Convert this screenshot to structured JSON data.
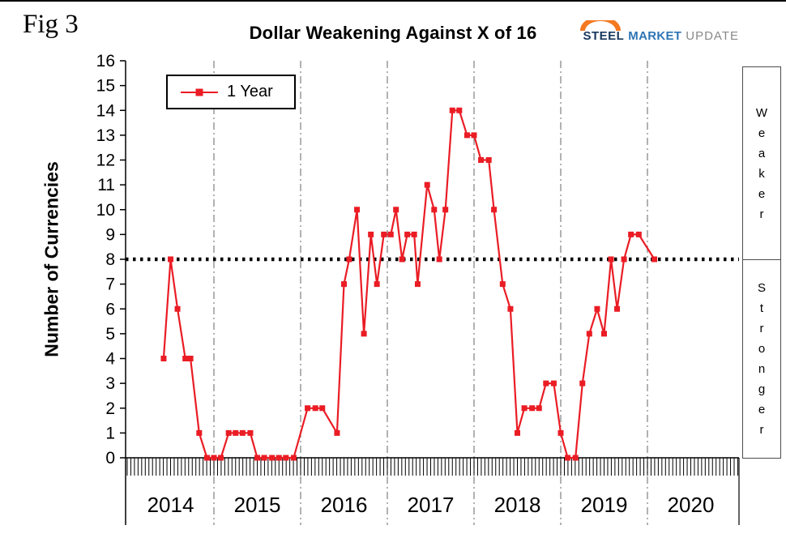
{
  "fig_label": "Fig 3",
  "title": "Dollar Weakening Against X of 16",
  "logo": {
    "steel": "STEEL",
    "market": "MARKET",
    "update": "UPDATE"
  },
  "legend": {
    "label": "1 Year"
  },
  "side": {
    "weaker": "Weaker",
    "stronger": "Stronger"
  },
  "colors": {
    "series": "#ea1c24",
    "threshold": "#000000",
    "gridline": "#7f7f7f",
    "axis": "#000000",
    "logo_orange": "#f47920",
    "logo_navy": "#17365d",
    "logo_blue": "#2e74b5",
    "logo_gray": "#898989"
  },
  "chart_data": {
    "type": "line",
    "title": "Dollar Weakening Against X of 16",
    "series_name": "1 Year",
    "xlabel": "",
    "ylabel": "Number of Currencies",
    "ylim": [
      0,
      16
    ],
    "yticks": [
      0,
      1,
      2,
      3,
      4,
      5,
      6,
      7,
      8,
      9,
      10,
      11,
      12,
      13,
      14,
      15,
      16
    ],
    "x_years": [
      2014,
      2015,
      2016,
      2017,
      2018,
      2019,
      2020
    ],
    "threshold": 8,
    "grid": "vertical-dash-dot",
    "legend_position": "top-left-inside",
    "points": [
      [
        2014.42,
        4
      ],
      [
        2014.5,
        8
      ],
      [
        2014.58,
        6
      ],
      [
        2014.67,
        4
      ],
      [
        2014.73,
        4
      ],
      [
        2014.83,
        1
      ],
      [
        2014.92,
        0
      ],
      [
        2015.0,
        0
      ],
      [
        2015.08,
        0
      ],
      [
        2015.17,
        1
      ],
      [
        2015.25,
        1
      ],
      [
        2015.33,
        1
      ],
      [
        2015.42,
        1
      ],
      [
        2015.5,
        0
      ],
      [
        2015.58,
        0
      ],
      [
        2015.67,
        0
      ],
      [
        2015.75,
        0
      ],
      [
        2015.83,
        0
      ],
      [
        2015.92,
        0
      ],
      [
        2016.08,
        2
      ],
      [
        2016.17,
        2
      ],
      [
        2016.25,
        2
      ],
      [
        2016.42,
        1
      ],
      [
        2016.5,
        7
      ],
      [
        2016.56,
        8
      ],
      [
        2016.65,
        10
      ],
      [
        2016.73,
        5
      ],
      [
        2016.81,
        9
      ],
      [
        2016.88,
        7
      ],
      [
        2016.96,
        9
      ],
      [
        2017.04,
        9
      ],
      [
        2017.1,
        10
      ],
      [
        2017.17,
        8
      ],
      [
        2017.23,
        9
      ],
      [
        2017.31,
        9
      ],
      [
        2017.35,
        7
      ],
      [
        2017.46,
        11
      ],
      [
        2017.54,
        10
      ],
      [
        2017.6,
        8
      ],
      [
        2017.67,
        10
      ],
      [
        2017.75,
        14
      ],
      [
        2017.83,
        14
      ],
      [
        2017.92,
        13
      ],
      [
        2018.0,
        13
      ],
      [
        2018.08,
        12
      ],
      [
        2018.17,
        12
      ],
      [
        2018.23,
        10
      ],
      [
        2018.33,
        7
      ],
      [
        2018.42,
        6
      ],
      [
        2018.5,
        1
      ],
      [
        2018.58,
        2
      ],
      [
        2018.67,
        2
      ],
      [
        2018.75,
        2
      ],
      [
        2018.83,
        3
      ],
      [
        2018.92,
        3
      ],
      [
        2019.0,
        1
      ],
      [
        2019.08,
        0
      ],
      [
        2019.17,
        0
      ],
      [
        2019.25,
        3
      ],
      [
        2019.33,
        5
      ],
      [
        2019.42,
        6
      ],
      [
        2019.5,
        5
      ],
      [
        2019.58,
        8
      ],
      [
        2019.65,
        6
      ],
      [
        2019.73,
        8
      ],
      [
        2019.81,
        9
      ],
      [
        2019.9,
        9
      ],
      [
        2020.08,
        8
      ]
    ]
  }
}
